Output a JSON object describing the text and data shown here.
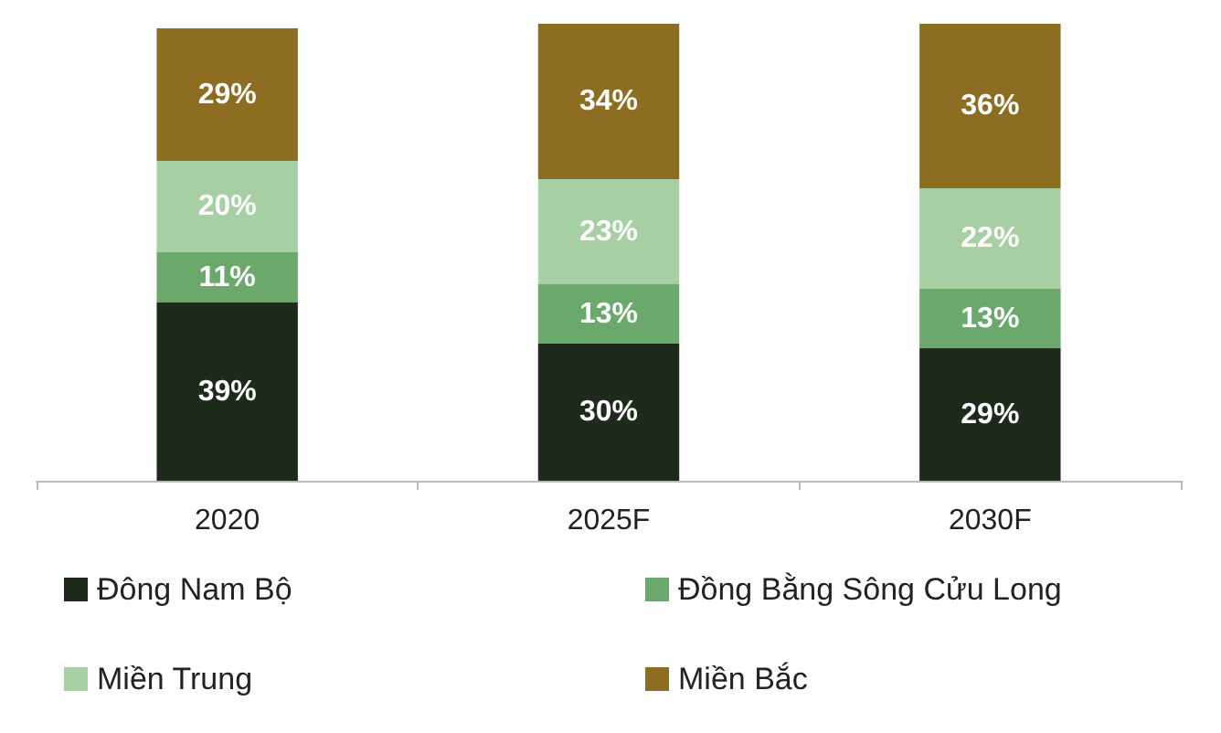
{
  "chart_data": {
    "type": "bar",
    "stacked": true,
    "categories": [
      "2020",
      "2025F",
      "2030F"
    ],
    "series": [
      {
        "name": "Đông Nam Bộ",
        "color": "#1e2b1c",
        "values": [
          39,
          30,
          29
        ],
        "value_labels": [
          "39%",
          "30%",
          "29%"
        ]
      },
      {
        "name": "Đồng Bằng Sông Cửu Long",
        "color": "#6aa86c",
        "values": [
          11,
          13,
          13
        ],
        "value_labels": [
          "11%",
          "13%",
          "13%"
        ]
      },
      {
        "name": "Miền Trung",
        "color": "#a6cfa4",
        "values": [
          20,
          23,
          22
        ],
        "value_labels": [
          "20%",
          "23%",
          "22%"
        ]
      },
      {
        "name": "Miền Bắc",
        "color": "#8c6d21",
        "values": [
          29,
          34,
          36
        ],
        "value_labels": [
          "29%",
          "34%",
          "36%"
        ]
      }
    ],
    "legend": "bottom",
    "tick_labels": "x"
  }
}
